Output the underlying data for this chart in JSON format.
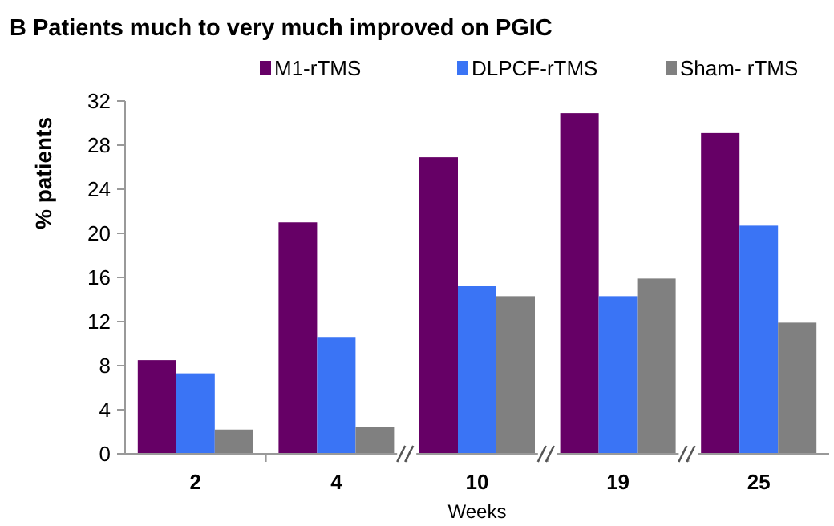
{
  "chart_data": {
    "type": "bar",
    "title": "B  Patients much to very much improved on PGIC",
    "xlabel": "Weeks",
    "ylabel": "% patients",
    "categories": [
      "2",
      "4",
      "10",
      "19",
      "25"
    ],
    "series": [
      {
        "name": "M1-rTMS",
        "color": "#660066",
        "values": [
          8.5,
          21,
          26.9,
          30.9,
          29.1
        ]
      },
      {
        "name": "DLPCF-rTMS",
        "color": "#3a74f5",
        "values": [
          7.3,
          10.6,
          15.2,
          14.3,
          20.7
        ]
      },
      {
        "name": "Sham- rTMS",
        "color": "#808080",
        "values": [
          2.2,
          2.4,
          14.3,
          15.9,
          11.9
        ]
      }
    ],
    "ylim": [
      0,
      32
    ],
    "yticks": [
      0,
      4,
      8,
      12,
      16,
      20,
      24,
      28,
      32
    ],
    "grid": false,
    "legend": "top"
  }
}
